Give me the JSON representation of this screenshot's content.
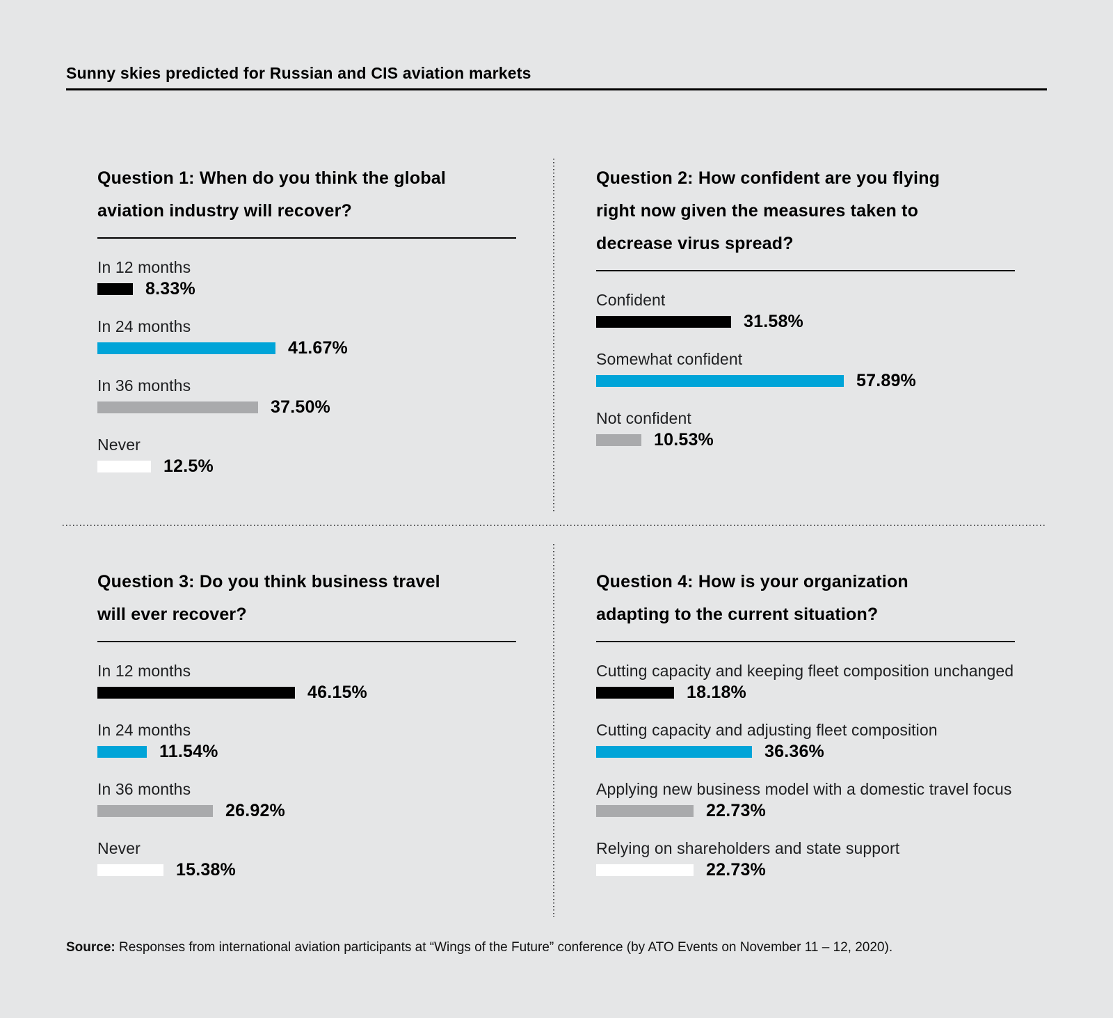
{
  "title": "Sunny skies predicted for Russian and CIS aviation markets",
  "colors": {
    "background": "#E5E6E7",
    "black": "#000000",
    "blue": "#00A4D8",
    "gray": "#A9AAAC",
    "white": "#FFFFFF",
    "divider": "#4A4B4D"
  },
  "questions": [
    {
      "heading": "Question 1: When do you think the global\naviation industry will recover?",
      "items": [
        {
          "label": "In 12 months",
          "value": "8.33%",
          "pct": 8.33,
          "color": "black"
        },
        {
          "label": "In 24 months",
          "value": "41.67%",
          "pct": 41.67,
          "color": "blue"
        },
        {
          "label": "In 36 months",
          "value": "37.50%",
          "pct": 37.5,
          "color": "gray"
        },
        {
          "label": "Never",
          "value": "12.5%",
          "pct": 12.5,
          "color": "white"
        }
      ]
    },
    {
      "heading": "Question 2: How confident are you flying\nright now given the measures taken to\ndecrease virus spread?",
      "items": [
        {
          "label": "Confident",
          "value": "31.58%",
          "pct": 31.58,
          "color": "black"
        },
        {
          "label": "Somewhat confident",
          "value": "57.89%",
          "pct": 57.89,
          "color": "blue"
        },
        {
          "label": "Not confident",
          "value": "10.53%",
          "pct": 10.53,
          "color": "gray"
        }
      ]
    },
    {
      "heading": "Question 3: Do you think business travel\nwill ever recover?",
      "items": [
        {
          "label": "In 12 months",
          "value": "46.15%",
          "pct": 46.15,
          "color": "black"
        },
        {
          "label": "In 24 months",
          "value": "11.54%",
          "pct": 11.54,
          "color": "blue"
        },
        {
          "label": "In 36 months",
          "value": "26.92%",
          "pct": 26.92,
          "color": "gray"
        },
        {
          "label": "Never",
          "value": "15.38%",
          "pct": 15.38,
          "color": "white"
        }
      ]
    },
    {
      "heading": "Question 4: How is your organization\nadapting to the current situation?",
      "items": [
        {
          "label": "Cutting capacity and keeping fleet composition unchanged",
          "value": "18.18%",
          "pct": 18.18,
          "color": "black"
        },
        {
          "label": "Cutting capacity and adjusting fleet composition",
          "value": "36.36%",
          "pct": 36.36,
          "color": "blue"
        },
        {
          "label": "Applying new business model with a domestic travel focus",
          "value": "22.73%",
          "pct": 22.73,
          "color": "gray"
        },
        {
          "label": "Relying on shareholders and state support",
          "value": "22.73%",
          "pct": 22.73,
          "color": "white"
        }
      ]
    }
  ],
  "source": {
    "label": "Source:",
    "text": "Responses from international aviation participants at “Wings of the Future” conference (by ATO Events on November 11 – 12, 2020)."
  },
  "chart_data": [
    {
      "type": "bar",
      "orientation": "horizontal",
      "title": "Question 1: When do you think the global aviation industry will recover?",
      "categories": [
        "In 12 months",
        "In 24 months",
        "In 36 months",
        "Never"
      ],
      "values": [
        8.33,
        41.67,
        37.5,
        12.5
      ],
      "value_labels": [
        "8.33%",
        "41.67%",
        "37.50%",
        "12.5%"
      ],
      "bar_colors": [
        "#000000",
        "#00A4D8",
        "#A9AAAC",
        "#FFFFFF"
      ],
      "xlabel": "",
      "ylabel": "",
      "xlim": [
        0,
        100
      ],
      "grid": false,
      "legend": false
    },
    {
      "type": "bar",
      "orientation": "horizontal",
      "title": "Question 2: How confident are you flying right now given the measures taken to decrease virus spread?",
      "categories": [
        "Confident",
        "Somewhat confident",
        "Not confident"
      ],
      "values": [
        31.58,
        57.89,
        10.53
      ],
      "value_labels": [
        "31.58%",
        "57.89%",
        "10.53%"
      ],
      "bar_colors": [
        "#000000",
        "#00A4D8",
        "#A9AAAC"
      ],
      "xlabel": "",
      "ylabel": "",
      "xlim": [
        0,
        100
      ],
      "grid": false,
      "legend": false
    },
    {
      "type": "bar",
      "orientation": "horizontal",
      "title": "Question 3: Do you think business travel will ever recover?",
      "categories": [
        "In 12 months",
        "In 24 months",
        "In 36 months",
        "Never"
      ],
      "values": [
        46.15,
        11.54,
        26.92,
        15.38
      ],
      "value_labels": [
        "46.15%",
        "11.54%",
        "26.92%",
        "15.38%"
      ],
      "bar_colors": [
        "#000000",
        "#00A4D8",
        "#A9AAAC",
        "#FFFFFF"
      ],
      "xlabel": "",
      "ylabel": "",
      "xlim": [
        0,
        100
      ],
      "grid": false,
      "legend": false
    },
    {
      "type": "bar",
      "orientation": "horizontal",
      "title": "Question 4: How is your organization adapting to the current situation?",
      "categories": [
        "Cutting capacity and keeping fleet composition unchanged",
        "Cutting capacity and adjusting fleet composition",
        "Applying new business model with a domestic travel focus",
        "Relying on shareholders and state support"
      ],
      "values": [
        18.18,
        36.36,
        22.73,
        22.73
      ],
      "value_labels": [
        "18.18%",
        "36.36%",
        "22.73%",
        "22.73%"
      ],
      "bar_colors": [
        "#000000",
        "#00A4D8",
        "#A9AAAC",
        "#FFFFFF"
      ],
      "xlabel": "",
      "ylabel": "",
      "xlim": [
        0,
        100
      ],
      "grid": false,
      "legend": false
    }
  ]
}
